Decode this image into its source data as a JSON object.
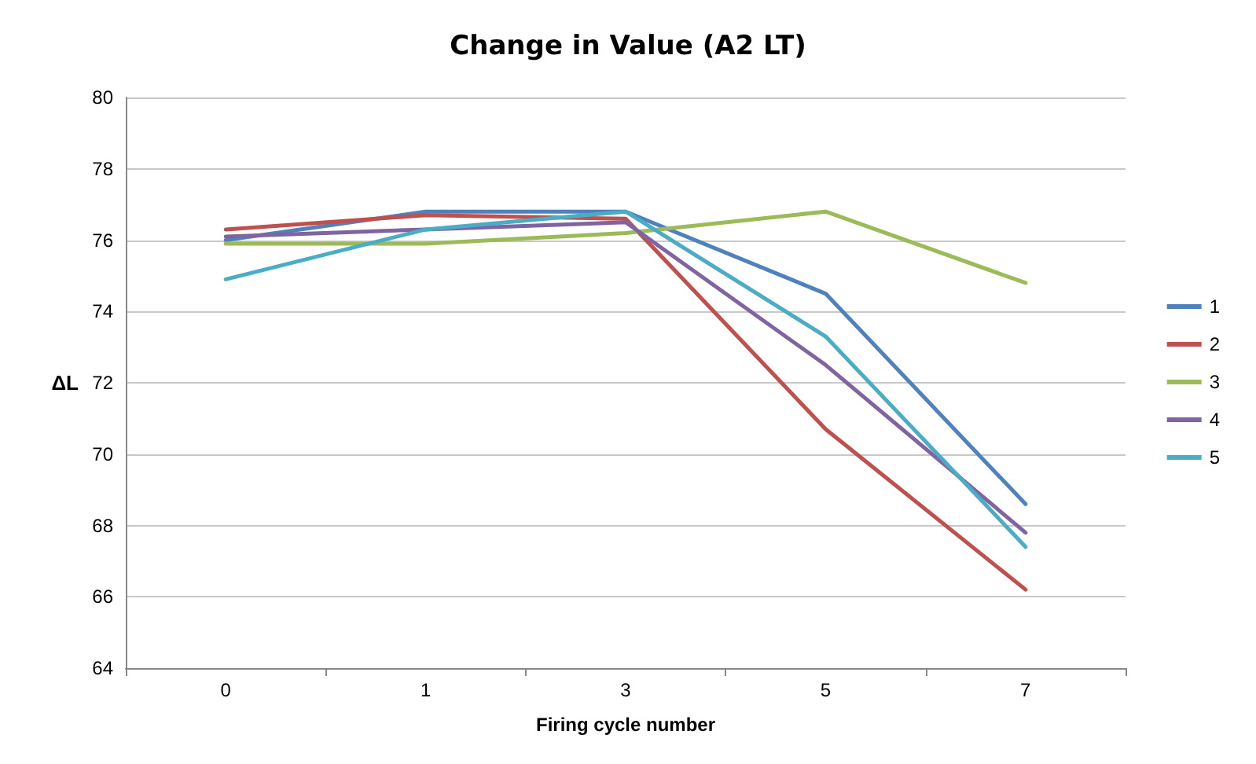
{
  "chart_data": {
    "type": "line",
    "title": "Change in Value (A2 LT)",
    "xlabel": "Firing cycle number",
    "ylabel": "ΔL",
    "categories": [
      "0",
      "1",
      "3",
      "5",
      "7"
    ],
    "series": [
      {
        "name": "1",
        "color": "#4f81bd",
        "values": [
          76.0,
          76.8,
          76.8,
          74.5,
          68.6
        ]
      },
      {
        "name": "2",
        "color": "#c0504d",
        "values": [
          76.3,
          76.7,
          76.6,
          70.7,
          66.2
        ]
      },
      {
        "name": "3",
        "color": "#9bbb59",
        "values": [
          75.9,
          75.9,
          76.2,
          76.8,
          74.8
        ]
      },
      {
        "name": "4",
        "color": "#8064a2",
        "values": [
          76.1,
          76.3,
          76.5,
          72.5,
          67.8
        ]
      },
      {
        "name": "5",
        "color": "#4bacc6",
        "values": [
          74.9,
          76.3,
          76.8,
          73.3,
          67.4
        ]
      }
    ],
    "ylim": [
      64,
      80
    ],
    "yticks": [
      64,
      66,
      68,
      70,
      72,
      74,
      76,
      78,
      80
    ],
    "grid": "y",
    "legend": "right",
    "marker": "none",
    "line_style": "solid"
  }
}
